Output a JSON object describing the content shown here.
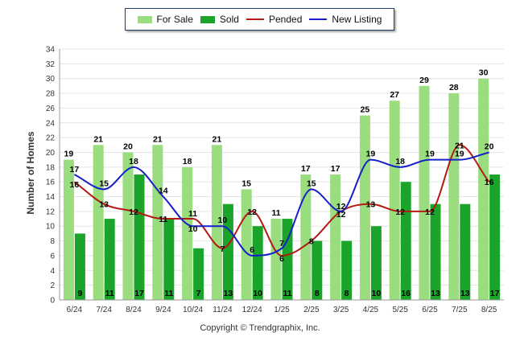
{
  "chart_data": {
    "type": "bar",
    "categories": [
      "6/24",
      "7/24",
      "8/24",
      "9/24",
      "10/24",
      "11/24",
      "12/24",
      "1/25",
      "2/25",
      "3/25",
      "4/25",
      "5/25",
      "6/25",
      "7/25",
      "8/25"
    ],
    "series": [
      {
        "name": "For Sale",
        "kind": "bar",
        "color": "#99dd7f",
        "values": [
          19,
          21,
          20,
          21,
          18,
          21,
          15,
          11,
          17,
          17,
          25,
          27,
          29,
          28,
          30
        ]
      },
      {
        "name": "Sold",
        "kind": "bar",
        "color": "#1aa52a",
        "values": [
          9,
          11,
          17,
          11,
          7,
          13,
          10,
          11,
          8,
          8,
          10,
          16,
          13,
          13,
          17
        ]
      },
      {
        "name": "Pended",
        "kind": "line",
        "color": "#b31a12",
        "values": [
          16,
          13,
          12,
          11,
          11,
          7,
          12,
          6,
          8,
          12,
          13,
          12,
          12,
          21,
          16
        ]
      },
      {
        "name": "New Listing",
        "kind": "line",
        "color": "#1520c8",
        "values": [
          17,
          15,
          18,
          14,
          10,
          10,
          6,
          7,
          15,
          12,
          19,
          18,
          19,
          19,
          20
        ]
      }
    ],
    "ylabel": "Number of Homes",
    "ylim": [
      0,
      34
    ],
    "yticks": [
      0,
      2,
      4,
      6,
      8,
      10,
      12,
      14,
      16,
      18,
      20,
      22,
      24,
      26,
      28,
      30,
      32,
      34
    ],
    "grid": true,
    "legend_position": "top-center"
  },
  "footer": {
    "copyright": "Copyright © Trendgraphix, Inc."
  }
}
